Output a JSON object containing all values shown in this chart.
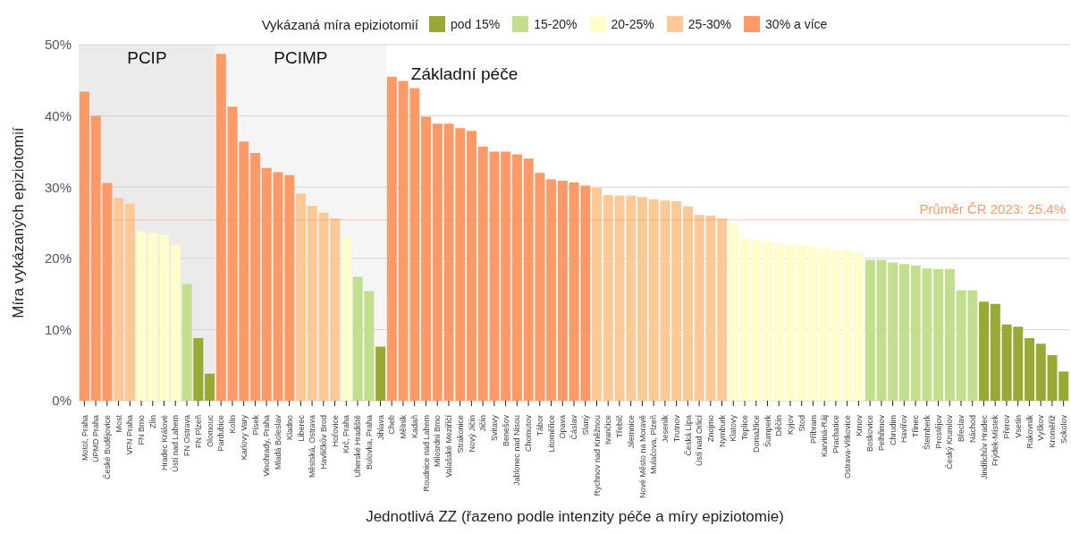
{
  "chart_data": {
    "type": "bar",
    "stacked": true,
    "legend_title": "Vykázaná míra epiziotomií",
    "xlabel": "Jednotlivá ZZ (řazeno podle intenzity péče a míry epiziotomie)",
    "ylabel": "Míra vykázaných epiziotomií",
    "categories": [
      "Motol, Praha",
      "ÚPMD Praha",
      "České Budějovice",
      "Most",
      "VFN Praha",
      "FN Brno",
      "Zlín",
      "Hradec Králové",
      "Ústí nad Labem",
      "FN Ostrava",
      "FN Plzeň",
      "Olomouc",
      "Pardubice",
      "Kolín",
      "Karlovy Vary",
      "Písek",
      "Vinohrady, Praha",
      "Mladá Boleslav",
      "Kladno",
      "Liberec",
      "Městská, Ostrava",
      "Havlíčkův Brod",
      "Hořovice",
      "Krč, Praha",
      "Uherské Hradiště",
      "Bulovka, Praha",
      "Jihlava",
      "Cheb",
      "Mělník",
      "Kadaň",
      "Roudnice nad Labem",
      "Milosrdní Brno",
      "Valašské Meziříčí",
      "Strakonice",
      "Nový Jičín",
      "Jičín",
      "Svitavy",
      "Benešov",
      "Jablonec nad Nisou",
      "Chomutov",
      "Tábor",
      "Litoměřice",
      "Opava",
      "Čáslav",
      "Slaný",
      "Rychnov nad Kněžnou",
      "Ivančice",
      "Třebíč",
      "Jilemnice",
      "Nové Město na Moravě",
      "Mulačova, Plzeň",
      "Jeseník",
      "Trutnov",
      "Česká Lípa",
      "Ústí nad Orlicí",
      "Znojmo",
      "Nymburk",
      "Klatovy",
      "Teplice",
      "Domažlice",
      "Šumperk",
      "Děčín",
      "Kyjov",
      "Stod",
      "Příbram",
      "Karviná-Ráj",
      "Prachatice",
      "Ostrava-Vítkovice",
      "Krnov",
      "Boskovice",
      "Pelhřimov",
      "Chrudim",
      "Havířov",
      "Třinec",
      "Šternberk",
      "Prostějov",
      "Český Krumlov",
      "Břeclav",
      "Náchod",
      "Jindřichův Hradec",
      "Frýdek-Místek",
      "Přerov",
      "Vsetín",
      "Rakovník",
      "Vyškov",
      "Kroměříž",
      "Sokolov"
    ],
    "series": [
      {
        "name": "pod 15%",
        "color": "#98aa35",
        "values": [
          null,
          null,
          null,
          null,
          null,
          null,
          null,
          null,
          null,
          null,
          8.8,
          3.8,
          null,
          null,
          null,
          null,
          null,
          null,
          null,
          null,
          null,
          null,
          null,
          null,
          null,
          null,
          7.6,
          null,
          null,
          null,
          null,
          null,
          null,
          null,
          null,
          null,
          null,
          null,
          null,
          null,
          null,
          null,
          null,
          null,
          null,
          null,
          null,
          null,
          null,
          null,
          null,
          null,
          null,
          null,
          null,
          null,
          null,
          null,
          null,
          null,
          null,
          null,
          null,
          null,
          null,
          null,
          null,
          null,
          null,
          null,
          null,
          null,
          null,
          null,
          null,
          null,
          null,
          null,
          null,
          13.9,
          13.6,
          10.7,
          10.4,
          8.8,
          8.0,
          6.4,
          4.1
        ]
      },
      {
        "name": "15-20%",
        "color": "#c2df8d",
        "values": [
          null,
          null,
          null,
          null,
          null,
          null,
          null,
          null,
          null,
          16.4,
          null,
          null,
          null,
          null,
          null,
          null,
          null,
          null,
          null,
          null,
          null,
          null,
          null,
          null,
          17.4,
          15.4,
          null,
          null,
          null,
          null,
          null,
          null,
          null,
          null,
          null,
          null,
          null,
          null,
          null,
          null,
          null,
          null,
          null,
          null,
          null,
          null,
          null,
          null,
          null,
          null,
          null,
          null,
          null,
          null,
          null,
          null,
          null,
          null,
          null,
          null,
          null,
          null,
          null,
          null,
          null,
          null,
          null,
          null,
          null,
          19.8,
          19.8,
          19.4,
          19.2,
          19.0,
          18.6,
          18.5,
          18.5,
          15.5,
          15.5,
          null,
          null,
          null,
          null,
          null,
          null,
          null,
          null
        ]
      },
      {
        "name": "20-25%",
        "color": "#fefdcb",
        "values": [
          null,
          null,
          null,
          null,
          null,
          23.8,
          23.6,
          23.3,
          21.9,
          null,
          null,
          null,
          null,
          null,
          null,
          null,
          null,
          null,
          null,
          null,
          null,
          null,
          null,
          23.0,
          null,
          null,
          null,
          null,
          null,
          null,
          null,
          null,
          null,
          null,
          null,
          null,
          null,
          null,
          null,
          null,
          null,
          null,
          null,
          null,
          null,
          null,
          null,
          null,
          null,
          null,
          null,
          null,
          null,
          null,
          null,
          null,
          null,
          24.8,
          22.8,
          22.6,
          22.4,
          22.1,
          21.9,
          21.9,
          21.6,
          21.4,
          21.1,
          21.1,
          20.8,
          null,
          null,
          null,
          null,
          null,
          null,
          null,
          null,
          null,
          null,
          null,
          null,
          null,
          null,
          null,
          null,
          null,
          null
        ]
      },
      {
        "name": "25-30%",
        "color": "#fdc996",
        "values": [
          null,
          null,
          null,
          28.5,
          27.7,
          null,
          null,
          null,
          null,
          null,
          null,
          null,
          null,
          null,
          null,
          null,
          null,
          null,
          null,
          29.1,
          27.4,
          26.4,
          25.6,
          null,
          null,
          null,
          null,
          null,
          null,
          null,
          null,
          null,
          null,
          null,
          null,
          null,
          null,
          null,
          null,
          null,
          null,
          null,
          null,
          null,
          null,
          29.9,
          28.9,
          28.8,
          28.8,
          28.6,
          28.3,
          28.1,
          28.0,
          27.3,
          26.1,
          26.0,
          25.6,
          null,
          null,
          null,
          null,
          null,
          null,
          null,
          null,
          null,
          null,
          null,
          null,
          null,
          null,
          null,
          null,
          null,
          null,
          null,
          null,
          null,
          null,
          null,
          null,
          null,
          null,
          null,
          null,
          null,
          null
        ]
      },
      {
        "name": "30% a více",
        "color": "#fd9a68",
        "values": [
          43.4,
          40.0,
          30.6,
          null,
          null,
          null,
          null,
          null,
          null,
          null,
          null,
          null,
          48.7,
          41.3,
          36.4,
          34.8,
          32.7,
          32.1,
          31.7,
          null,
          null,
          null,
          null,
          null,
          null,
          null,
          null,
          45.5,
          44.9,
          43.9,
          39.9,
          38.9,
          38.9,
          38.3,
          37.9,
          35.7,
          35.0,
          35.0,
          34.6,
          34.0,
          32.0,
          31.1,
          30.9,
          30.7,
          30.2,
          null,
          null,
          null,
          null,
          null,
          null,
          null,
          null,
          null,
          null,
          null,
          null,
          null,
          null,
          null,
          null,
          null,
          null,
          null,
          null,
          null,
          null,
          null,
          null,
          null,
          null,
          null,
          null,
          null,
          null,
          null,
          null,
          null,
          null,
          null,
          null,
          null,
          null,
          null,
          null,
          null,
          null
        ]
      }
    ],
    "ylim": [
      0,
      50
    ],
    "yticks": [
      {
        "value": 0,
        "label": "0%"
      },
      {
        "value": 10,
        "label": "10%"
      },
      {
        "value": 20,
        "label": "20%"
      },
      {
        "value": 30,
        "label": "30%"
      },
      {
        "value": 40,
        "label": "40%"
      },
      {
        "value": 50,
        "label": "50%"
      }
    ],
    "grid": "y",
    "legend": "top",
    "ref_lines": [
      {
        "axis": "y",
        "value": 25.4,
        "label": "Průměr ČR 2023: 25.4%",
        "color": "#fd9a68"
      }
    ],
    "bands": [
      {
        "axis": "x",
        "from": "Motol, Praha",
        "to": "Olomouc",
        "label": "PCIP",
        "color": "#ebebeb"
      },
      {
        "axis": "x",
        "from": "Pardubice",
        "to": "Jihlava",
        "label": "PCIMP",
        "color": "#f5f5f5"
      }
    ],
    "annotations": [
      "Základní péče"
    ]
  }
}
